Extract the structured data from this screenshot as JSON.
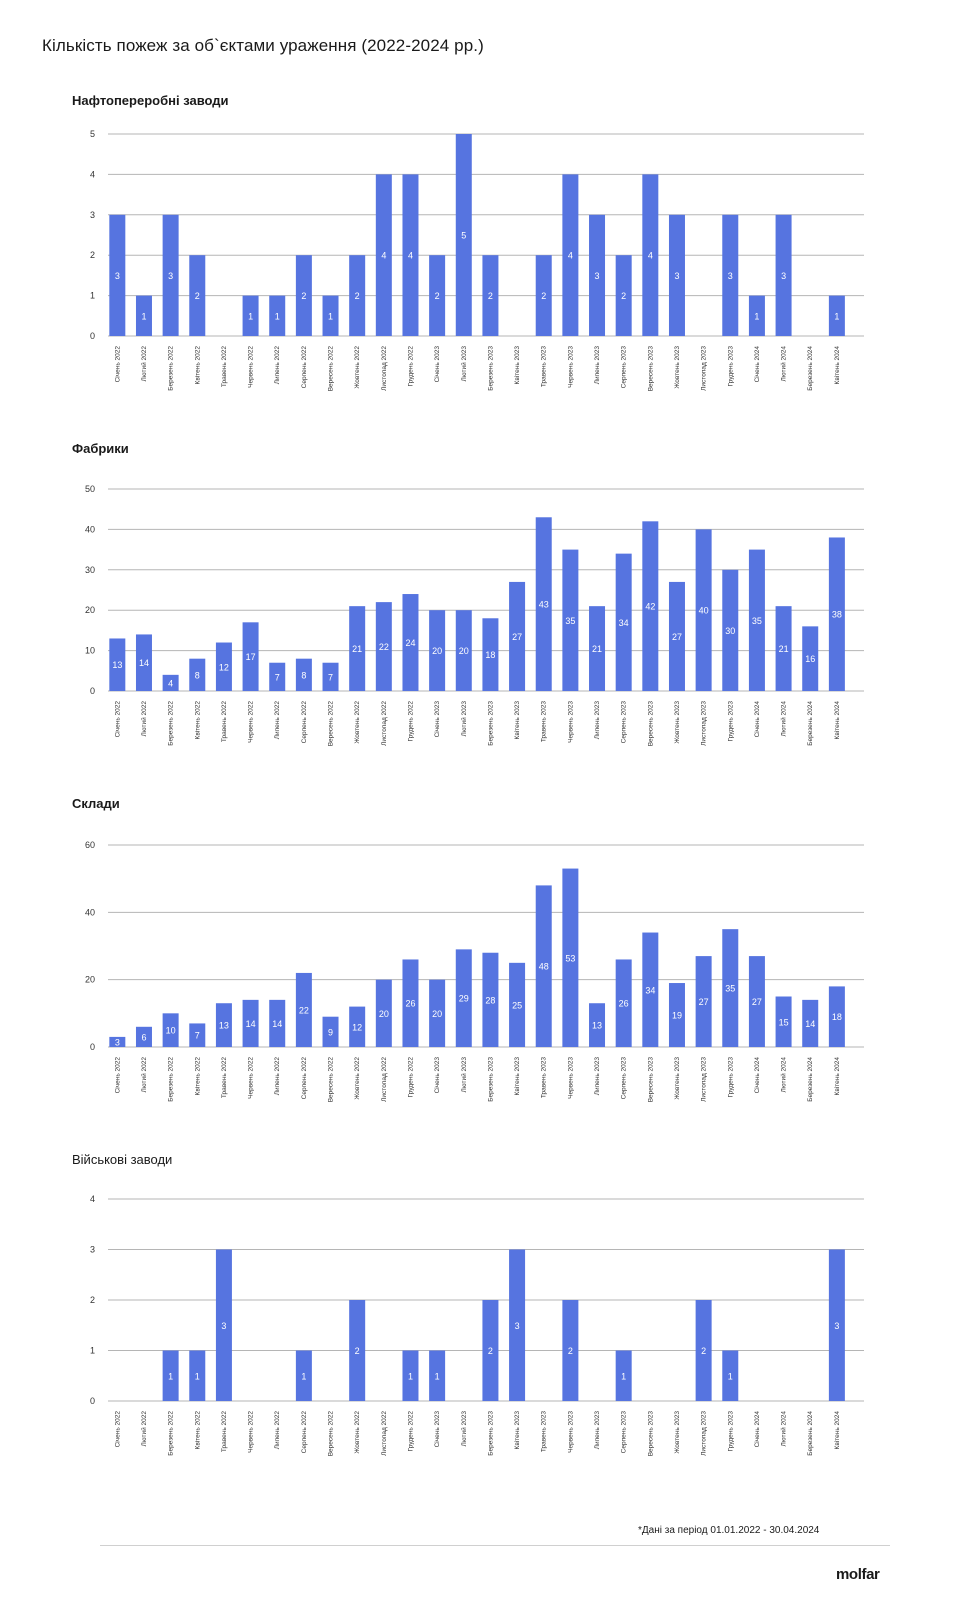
{
  "page_title": "Кількість пожеж за об`єктами ураження (2022-2024 рр.)",
  "footnote": "*Дані за період 01.01.2022 - 30.04.2024",
  "brand": "molfar",
  "colors": {
    "bar": "#5674e0",
    "grid": "#b5b5b5",
    "label": "#ffffff"
  },
  "chart_data": [
    {
      "type": "bar",
      "title": "Нафтопереробні заводи",
      "categories": [
        "Січень 2022",
        "Лютий 2022",
        "Березень 2022",
        "Квітень 2022",
        "Травень 2022",
        "Червень 2022",
        "Липень 2022",
        "Серпень 2022",
        "Вересень 2022",
        "Жовтень 2022",
        "Листопад 2022",
        "Грудень 2022",
        "Січень 2023",
        "Лютий 2023",
        "Березень 2023",
        "Квітень 2023",
        "Травень 2023",
        "Червень 2023",
        "Липень 2023",
        "Серпень 2023",
        "Вересень 2023",
        "Жовтень 2023",
        "Листопад 2023",
        "Грудень 2023",
        "Січень 2024",
        "Лютий 2024",
        "Березень 2024",
        "Квітень 2024"
      ],
      "values": [
        3,
        1,
        3,
        2,
        0,
        1,
        1,
        2,
        1,
        2,
        4,
        4,
        2,
        5,
        2,
        0,
        2,
        4,
        3,
        2,
        4,
        3,
        0,
        3,
        1,
        3,
        0,
        1
      ],
      "ylim": [
        0,
        5
      ],
      "yticks": [
        0,
        1,
        2,
        3,
        4,
        5
      ],
      "grid": true
    },
    {
      "type": "bar",
      "title": "Фабрики",
      "categories": [
        "Січень 2022",
        "Лютий 2022",
        "Березень 2022",
        "Квітень 2022",
        "Травень 2022",
        "Червень 2022",
        "Липень 2022",
        "Серпень 2022",
        "Вересень 2022",
        "Жовтень 2022",
        "Листопад 2022",
        "Грудень 2022",
        "Січень 2023",
        "Лютий 2023",
        "Березень 2023",
        "Квітень 2023",
        "Травень 2023",
        "Червень 2023",
        "Липень 2023",
        "Серпень 2023",
        "Вересень 2023",
        "Жовтень 2023",
        "Листопад 2023",
        "Грудень 2023",
        "Січень 2024",
        "Лютий 2024",
        "Березень 2024",
        "Квітень 2024"
      ],
      "values": [
        13,
        14,
        4,
        8,
        12,
        17,
        7,
        8,
        7,
        21,
        22,
        24,
        20,
        20,
        18,
        27,
        43,
        35,
        21,
        34,
        42,
        27,
        40,
        30,
        35,
        21,
        16,
        38
      ],
      "ylim": [
        0,
        50
      ],
      "yticks": [
        0,
        10,
        20,
        30,
        40,
        50
      ],
      "grid": true
    },
    {
      "type": "bar",
      "title": "Склади",
      "categories": [
        "Січень 2022",
        "Лютий 2022",
        "Березень 2022",
        "Квітень 2022",
        "Травень 2022",
        "Червень 2022",
        "Липень 2022",
        "Серпень 2022",
        "Вересень 2022",
        "Жовтень 2022",
        "Листопад 2022",
        "Грудень 2022",
        "Січень 2023",
        "Лютий 2023",
        "Березень 2023",
        "Квітень 2023",
        "Травень 2023",
        "Червень 2023",
        "Липень 2023",
        "Серпень 2023",
        "Вересень 2023",
        "Жовтень 2023",
        "Листопад 2023",
        "Грудень 2023",
        "Січень 2024",
        "Лютий 2024",
        "Березень 2024",
        "Квітень 2024"
      ],
      "values": [
        3,
        6,
        10,
        7,
        13,
        14,
        14,
        22,
        9,
        12,
        20,
        26,
        20,
        29,
        28,
        25,
        48,
        53,
        13,
        26,
        34,
        19,
        27,
        35,
        27,
        15,
        14,
        18
      ],
      "ylim": [
        0,
        60
      ],
      "yticks": [
        0,
        20,
        40,
        60
      ],
      "grid": true
    },
    {
      "type": "bar",
      "title": "Військові заводи",
      "categories": [
        "Січень 2022",
        "Лютий 2022",
        "Березень 2022",
        "Квітень 2022",
        "Травень 2022",
        "Червень 2022",
        "Липень 2022",
        "Серпень 2022",
        "Вересень 2022",
        "Жовтень 2022",
        "Листопад 2022",
        "Грудень 2022",
        "Січень 2023",
        "Лютий 2023",
        "Березень 2023",
        "Квітень 2023",
        "Травень 2023",
        "Червень 2023",
        "Липень 2023",
        "Серпень 2023",
        "Вересень 2023",
        "Жовтень 2023",
        "Листопад 2023",
        "Грудень 2023",
        "Січень 2024",
        "Лютий 2024",
        "Березень 2024",
        "Квітень 2024"
      ],
      "values": [
        0,
        0,
        1,
        1,
        3,
        0,
        0,
        1,
        0,
        2,
        0,
        1,
        1,
        0,
        2,
        3,
        0,
        2,
        0,
        1,
        0,
        0,
        2,
        1,
        0,
        0,
        0,
        3
      ],
      "ylim": [
        0,
        4
      ],
      "yticks": [
        0,
        1,
        2,
        3,
        4
      ],
      "grid": true
    }
  ]
}
